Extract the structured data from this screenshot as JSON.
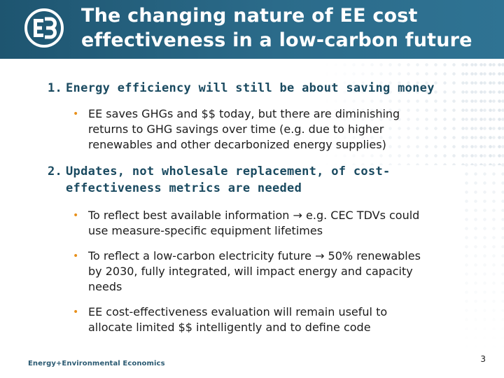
{
  "header": {
    "title_line1": "The changing nature of EE cost",
    "title_line2": "effectiveness in a low-carbon future"
  },
  "sections": [
    {
      "number": "1.",
      "heading": "Energy efficiency will still be about saving money",
      "bullets": [
        {
          "line1": "EE saves GHGs and $$ today, but there are diminishing",
          "line2": "returns to GHG savings over time (e.g. due to higher",
          "line3": "renewables and other decarbonized energy supplies)"
        }
      ]
    },
    {
      "number": "2.",
      "heading_line1": "Updates, not wholesale replacement, of cost-",
      "heading_line2": "effectiveness metrics are needed",
      "bullets": [
        {
          "pre": "To reflect best available information",
          "post": " e.g. CEC TDVs could",
          "line2": "use measure-specific equipment lifetimes"
        },
        {
          "pre": "To reflect a low-carbon electricity future",
          "post": " 50% renewables",
          "line2": "by 2030, fully integrated, will impact energy and capacity",
          "line3": "needs"
        },
        {
          "line1": "EE cost-effectiveness evaluation will remain useful to",
          "line2": "allocate limited $$ intelligently and to define code"
        }
      ]
    }
  ],
  "footer": {
    "company": "Energy+Environmental Economics",
    "page_number": "3"
  },
  "colors": {
    "header_bg": "#2b6b8a",
    "heading_text": "#1a4a60",
    "bullet_accent": "#e8901b"
  },
  "icons": {
    "logo": "e3-logo-icon",
    "arrow": "right-arrow-icon"
  }
}
